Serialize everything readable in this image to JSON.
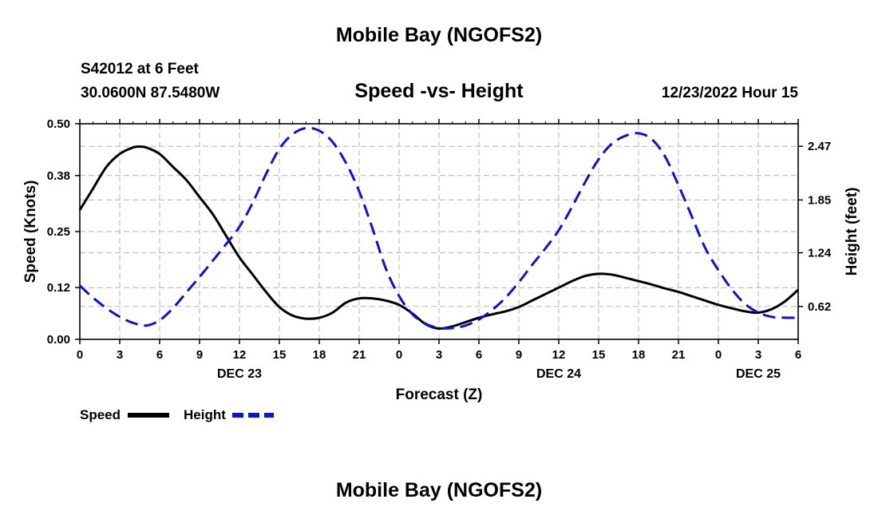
{
  "header": {
    "title": "Mobile Bay (NGOFS2)",
    "station": "S42012 at 6 Feet",
    "coordinates": "30.0600N  87.5480W",
    "chart_title": "Speed -vs- Height",
    "datetime": "12/23/2022 Hour 15"
  },
  "footer": {
    "title": "Mobile Bay (NGOFS2)"
  },
  "chart_data": {
    "type": "line",
    "title": "Speed -vs- Height",
    "xlabel": "Forecast (Z)",
    "ylabel": "Speed (Knots)",
    "y2label": "Height (feet)",
    "xlim": [
      0,
      54
    ],
    "ylim": [
      0,
      0.5
    ],
    "y2lim": [
      0.24,
      2.73
    ],
    "x_ticks": [
      0,
      3,
      6,
      9,
      12,
      15,
      18,
      21,
      24,
      27,
      30,
      33,
      36,
      39,
      42,
      45,
      48,
      51,
      54
    ],
    "x_tick_labels": [
      "0",
      "3",
      "6",
      "9",
      "12",
      "15",
      "18",
      "21",
      "0",
      "3",
      "6",
      "9",
      "12",
      "15",
      "18",
      "21",
      "0",
      "3",
      "6"
    ],
    "date_labels": [
      {
        "x": 12,
        "label": "DEC 23"
      },
      {
        "x": 36,
        "label": "DEC 24"
      },
      {
        "x": 51,
        "label": "DEC 25"
      }
    ],
    "y_ticks": [
      0.0,
      0.12,
      0.25,
      0.38,
      0.5
    ],
    "y_tick_labels": [
      "0.00",
      "0.12",
      "0.25",
      "0.38",
      "0.50"
    ],
    "y2_ticks": [
      0.62,
      1.24,
      1.85,
      2.47
    ],
    "y2_tick_labels": [
      "0.62",
      "1.24",
      "1.85",
      "2.47"
    ],
    "grid": true,
    "legend_position": "bottom-left",
    "series": [
      {
        "name": "Speed",
        "axis": "left",
        "color": "#000000",
        "style": "solid",
        "points": [
          [
            0,
            0.3
          ],
          [
            1,
            0.35
          ],
          [
            2,
            0.4
          ],
          [
            3,
            0.43
          ],
          [
            4,
            0.445
          ],
          [
            4.5,
            0.447
          ],
          [
            5,
            0.445
          ],
          [
            6,
            0.43
          ],
          [
            7,
            0.4
          ],
          [
            8,
            0.37
          ],
          [
            9,
            0.33
          ],
          [
            10,
            0.29
          ],
          [
            11,
            0.24
          ],
          [
            12,
            0.19
          ],
          [
            13,
            0.15
          ],
          [
            14,
            0.11
          ],
          [
            15,
            0.075
          ],
          [
            16,
            0.055
          ],
          [
            17,
            0.048
          ],
          [
            18,
            0.05
          ],
          [
            19,
            0.062
          ],
          [
            20,
            0.085
          ],
          [
            21,
            0.095
          ],
          [
            22,
            0.095
          ],
          [
            23,
            0.09
          ],
          [
            24,
            0.08
          ],
          [
            25,
            0.06
          ],
          [
            26,
            0.035
          ],
          [
            27,
            0.025
          ],
          [
            28,
            0.03
          ],
          [
            29,
            0.04
          ],
          [
            30,
            0.05
          ],
          [
            31,
            0.058
          ],
          [
            32,
            0.065
          ],
          [
            33,
            0.075
          ],
          [
            34,
            0.09
          ],
          [
            35,
            0.105
          ],
          [
            36,
            0.12
          ],
          [
            37,
            0.135
          ],
          [
            38,
            0.147
          ],
          [
            39,
            0.152
          ],
          [
            40,
            0.15
          ],
          [
            41,
            0.143
          ],
          [
            42,
            0.135
          ],
          [
            43,
            0.127
          ],
          [
            44,
            0.118
          ],
          [
            45,
            0.11
          ],
          [
            46,
            0.1
          ],
          [
            47,
            0.09
          ],
          [
            48,
            0.08
          ],
          [
            49,
            0.072
          ],
          [
            50,
            0.065
          ],
          [
            51,
            0.062
          ],
          [
            52,
            0.07
          ],
          [
            53,
            0.088
          ],
          [
            54,
            0.115
          ]
        ]
      },
      {
        "name": "Height",
        "axis": "right",
        "color": "#0a14c8",
        "style": "dashed",
        "points": [
          [
            0,
            0.86
          ],
          [
            1,
            0.72
          ],
          [
            2,
            0.6
          ],
          [
            3,
            0.5
          ],
          [
            4,
            0.43
          ],
          [
            5,
            0.4
          ],
          [
            6,
            0.46
          ],
          [
            7,
            0.6
          ],
          [
            8,
            0.78
          ],
          [
            9,
            0.96
          ],
          [
            10,
            1.15
          ],
          [
            11,
            1.34
          ],
          [
            12,
            1.54
          ],
          [
            13,
            1.82
          ],
          [
            14,
            2.15
          ],
          [
            15,
            2.44
          ],
          [
            16,
            2.61
          ],
          [
            17,
            2.68
          ],
          [
            18,
            2.65
          ],
          [
            19,
            2.52
          ],
          [
            20,
            2.28
          ],
          [
            21,
            1.95
          ],
          [
            22,
            1.52
          ],
          [
            23,
            1.06
          ],
          [
            24,
            0.74
          ],
          [
            25,
            0.53
          ],
          [
            26,
            0.42
          ],
          [
            27,
            0.37
          ],
          [
            28,
            0.37
          ],
          [
            29,
            0.4
          ],
          [
            30,
            0.47
          ],
          [
            31,
            0.58
          ],
          [
            32,
            0.72
          ],
          [
            33,
            0.9
          ],
          [
            34,
            1.1
          ],
          [
            35,
            1.29
          ],
          [
            36,
            1.5
          ],
          [
            37,
            1.77
          ],
          [
            38,
            2.06
          ],
          [
            39,
            2.32
          ],
          [
            40,
            2.5
          ],
          [
            41,
            2.59
          ],
          [
            42,
            2.62
          ],
          [
            43,
            2.55
          ],
          [
            44,
            2.35
          ],
          [
            45,
            2.02
          ],
          [
            46,
            1.66
          ],
          [
            47,
            1.3
          ],
          [
            48,
            1.04
          ],
          [
            49,
            0.82
          ],
          [
            50,
            0.65
          ],
          [
            51,
            0.55
          ],
          [
            52,
            0.5
          ],
          [
            53,
            0.49
          ],
          [
            54,
            0.49
          ]
        ]
      }
    ]
  }
}
